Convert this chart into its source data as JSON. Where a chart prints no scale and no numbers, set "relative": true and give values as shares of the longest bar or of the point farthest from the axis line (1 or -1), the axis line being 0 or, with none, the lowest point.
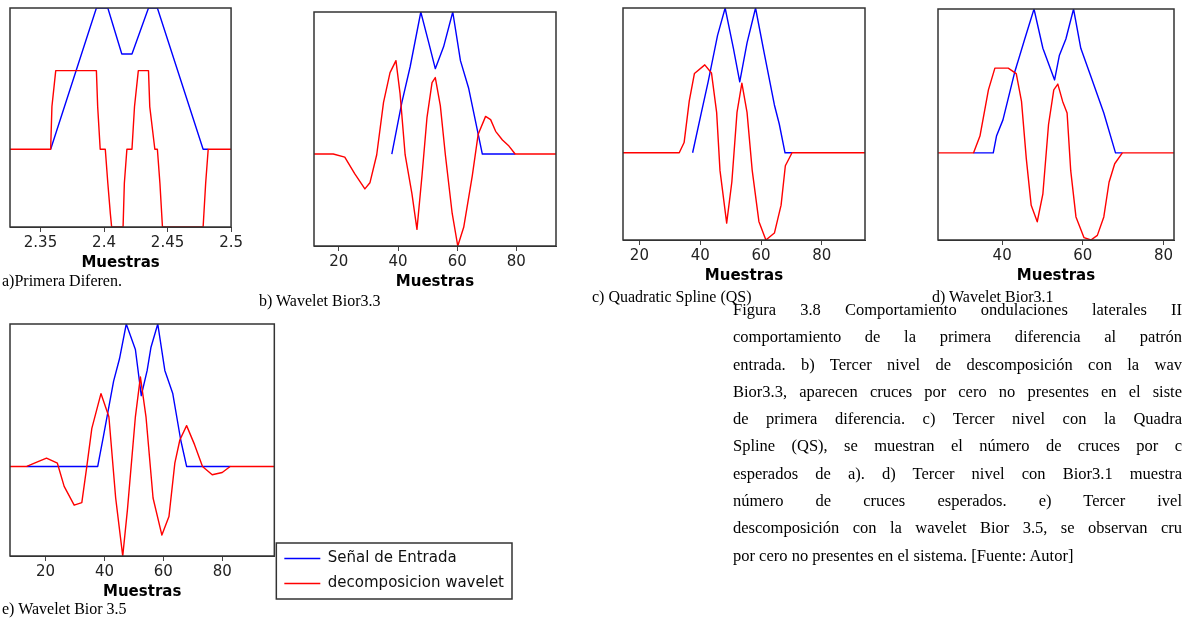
{
  "chart_data": [
    {
      "type": "line",
      "title": "a)Primera Diferen.",
      "xlabel": "Muestras",
      "relative": true,
      "xlim": [
        2.326,
        2.5
      ],
      "xticks": [
        2.35,
        2.4,
        2.45,
        2.5
      ],
      "grid": false,
      "marker": "none",
      "line_style": "solid",
      "series": [
        {
          "color": "#0000ff",
          "x": [
            2.358,
            2.394,
            2.403,
            2.414,
            2.422,
            2.435,
            2.442,
            2.478,
            2.482
          ],
          "values": [
            0.355,
            1,
            1,
            0.79,
            0.79,
            1,
            1,
            0.355,
            0.355
          ]
        },
        {
          "color": "#ff0000",
          "x": [
            2.326,
            2.358,
            2.359,
            2.362,
            2.394,
            2.395,
            2.397,
            2.401,
            2.403,
            2.405,
            2.406,
            2.415,
            2.416,
            2.418,
            2.422,
            2.424,
            2.427,
            2.435,
            2.436,
            2.44,
            2.442,
            2.444,
            2.446,
            2.478,
            2.48,
            2.482,
            2.5
          ],
          "values": [
            0.355,
            0.355,
            0.55,
            0.714,
            0.714,
            0.55,
            0.355,
            0.355,
            0.2,
            0.06,
            0,
            0,
            0.2,
            0.355,
            0.355,
            0.55,
            0.714,
            0.714,
            0.55,
            0.355,
            0.355,
            0.2,
            0,
            0,
            0.2,
            0.355,
            0.355
          ]
        }
      ]
    },
    {
      "type": "line",
      "title": "b) Wavelet Bior3.3",
      "xlabel": "Muestras",
      "relative": true,
      "xlim": [
        11.6,
        93.4
      ],
      "xticks": [
        20,
        40,
        60,
        80
      ],
      "grid": false,
      "marker": "none",
      "line_style": "solid",
      "series": [
        {
          "color": "#0000ff",
          "x": [
            37.9,
            41.3,
            44.1,
            47.7,
            50.4,
            52.6,
            55.4,
            58.5,
            61.1,
            63.9,
            68.5,
            79.6
          ],
          "values": [
            0.393,
            0.614,
            0.766,
            1,
            0.868,
            0.758,
            0.851,
            1,
            0.792,
            0.673,
            0.393,
            0.393
          ]
        },
        {
          "color": "#ff0000",
          "x": [
            11.6,
            18.1,
            22.0,
            25.4,
            28.8,
            30.5,
            32.8,
            35.1,
            37.3,
            39.3,
            40.7,
            42.4,
            44.7,
            46.4,
            48.1,
            49.8,
            51.5,
            52.6,
            54.3,
            56.0,
            58.3,
            60.2,
            62.2,
            65.1,
            67.1,
            69.6,
            71.3,
            73.0,
            75.3,
            77.5,
            79.6,
            93.4
          ],
          "values": [
            0.393,
            0.393,
            0.38,
            0.308,
            0.244,
            0.27,
            0.39,
            0.614,
            0.741,
            0.792,
            0.65,
            0.39,
            0.224,
            0.071,
            0.3,
            0.55,
            0.698,
            0.72,
            0.6,
            0.39,
            0.14,
            0,
            0.08,
            0.3,
            0.478,
            0.554,
            0.54,
            0.49,
            0.453,
            0.427,
            0.393,
            0.393
          ]
        }
      ]
    },
    {
      "type": "line",
      "title": "c) Quadratic Spline (QS)",
      "xlabel": "Muestras",
      "relative": true,
      "xlim": [
        14.6,
        94.2
      ],
      "xticks": [
        20,
        40,
        60,
        80
      ],
      "grid": false,
      "marker": "none",
      "line_style": "solid",
      "series": [
        {
          "color": "#0000ff",
          "x": [
            37.5,
            40.3,
            42.6,
            45.7,
            48.2,
            50.9,
            53.0,
            55.4,
            58.2,
            61.0,
            64.4,
            66.0,
            67.9,
            70.2
          ],
          "values": [
            0.376,
            0.545,
            0.682,
            0.882,
            1,
            0.827,
            0.682,
            0.85,
            1,
            0.809,
            0.582,
            0.5,
            0.376,
            0.376
          ]
        },
        {
          "color": "#ff0000",
          "x": [
            14.6,
            33.1,
            34.7,
            36.4,
            38.1,
            41.5,
            43.7,
            45.4,
            46.5,
            48.7,
            50.4,
            52.1,
            53.7,
            55.4,
            57.1,
            59.3,
            61.6,
            64.4,
            66.6,
            68.0,
            70.2,
            94.2
          ],
          "values": [
            0.376,
            0.376,
            0.42,
            0.6,
            0.718,
            0.755,
            0.72,
            0.55,
            0.3,
            0.073,
            0.25,
            0.55,
            0.676,
            0.55,
            0.3,
            0.08,
            0,
            0.03,
            0.15,
            0.32,
            0.376,
            0.376
          ]
        }
      ]
    },
    {
      "type": "line",
      "title": "d) Wavelet Bior3.1",
      "xlabel": "Muestras",
      "relative": true,
      "xlim": [
        24.1,
        82.6
      ],
      "xticks": [
        40,
        60,
        80
      ],
      "grid": false,
      "marker": "none",
      "line_style": "solid",
      "series": [
        {
          "color": "#0000ff",
          "x": [
            32.9,
            37.8,
            38.6,
            40.2,
            43.1,
            45.6,
            47.9,
            50.1,
            53.0,
            54.2,
            55.8,
            57.7,
            59.5,
            62.0,
            65.2,
            68.1,
            69.8
          ],
          "values": [
            0.377,
            0.377,
            0.45,
            0.52,
            0.726,
            0.87,
            1,
            0.83,
            0.693,
            0.8,
            0.87,
            1,
            0.83,
            0.708,
            0.55,
            0.377,
            0.377
          ]
        },
        {
          "color": "#ff0000",
          "x": [
            24.1,
            32.9,
            34.5,
            36.6,
            38.2,
            41.5,
            43.5,
            44.8,
            46.0,
            47.2,
            48.7,
            50.1,
            51.5,
            52.8,
            53.8,
            55.0,
            56.1,
            57.0,
            58.3,
            60.3,
            62.0,
            63.6,
            65.2,
            66.5,
            67.9,
            69.8,
            82.6
          ],
          "values": [
            0.377,
            0.377,
            0.45,
            0.65,
            0.744,
            0.744,
            0.72,
            0.6,
            0.35,
            0.15,
            0.079,
            0.2,
            0.5,
            0.65,
            0.675,
            0.6,
            0.55,
            0.3,
            0.1,
            0.01,
            0,
            0.02,
            0.1,
            0.25,
            0.33,
            0.377,
            0.377
          ]
        }
      ]
    },
    {
      "type": "line",
      "title": "e) Wavelet Bior 3.5",
      "xlabel": "Muestras",
      "relative": true,
      "xlim": [
        7.9,
        97.7
      ],
      "xticks": [
        20,
        40,
        60,
        80
      ],
      "grid": false,
      "marker": "none",
      "line_style": "solid",
      "legend": "right",
      "series": [
        {
          "name": "Señal de Entrada",
          "color": "#0000ff",
          "x": [
            13.6,
            37.7,
            39.7,
            43.1,
            45.1,
            47.4,
            50.5,
            52.5,
            54.5,
            55.8,
            58.1,
            60.5,
            63.2,
            65.9,
            67.9,
            82.7
          ],
          "values": [
            0.386,
            0.386,
            0.52,
            0.754,
            0.85,
            1,
            0.89,
            0.691,
            0.8,
            0.9,
            1,
            0.8,
            0.7,
            0.5,
            0.386,
            0.386
          ]
        },
        {
          "name": "decomposicion wavelet",
          "color": "#ff0000",
          "x": [
            7.9,
            13.6,
            16.2,
            20.3,
            24.0,
            26.3,
            29.7,
            32.3,
            34.0,
            35.7,
            38.8,
            41.5,
            43.8,
            46.2,
            47.8,
            50.5,
            52.2,
            54.1,
            56.5,
            59.5,
            61.9,
            63.9,
            65.6,
            67.9,
            70.6,
            73.3,
            76.6,
            80.0,
            82.7,
            97.7
          ],
          "values": [
            0.386,
            0.386,
            0.4,
            0.422,
            0.4,
            0.3,
            0.219,
            0.23,
            0.386,
            0.55,
            0.7,
            0.6,
            0.25,
            0,
            0.2,
            0.6,
            0.772,
            0.6,
            0.25,
            0.09,
            0.17,
            0.4,
            0.5,
            0.562,
            0.48,
            0.386,
            0.35,
            0.36,
            0.386,
            0.386
          ]
        }
      ]
    },
    {
      "type": "other",
      "annotations": [
        "Figura 3.8 Comportamiento ondulaciones laterales II",
        "comportamiento de la primera diferencia al patrón",
        "entrada. b) Tercer nivel de descomposición con la wav",
        "Bior3.3, aparecen cruces por cero no presentes en el siste",
        "de primera diferencia. c) Tercer nivel con la Quadra",
        "Spline (QS), se muestran el número de cruces por c",
        "esperados de a). d) Tercer nivel con Bior3.1 muestra",
        "número de cruces esperados. e) Tercer ivel",
        "descomposición con la wavelet Bior 3.5, se observan cru",
        "por cero no presentes en el sistema. [Fuente: Autor]"
      ]
    }
  ]
}
